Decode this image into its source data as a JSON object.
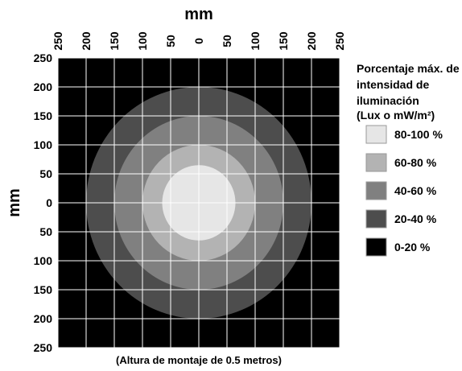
{
  "chart_data": {
    "type": "heatmap",
    "title": "",
    "x_axis": {
      "label": "mm",
      "ticks": [
        "250",
        "200",
        "150",
        "100",
        "50",
        "0",
        "50",
        "100",
        "150",
        "200",
        "250"
      ],
      "range": [
        -250,
        250
      ]
    },
    "y_axis": {
      "label": "mm",
      "ticks": [
        "250",
        "200",
        "150",
        "100",
        "50",
        "0",
        "50",
        "100",
        "150",
        "200",
        "250"
      ],
      "range": [
        -250,
        250
      ]
    },
    "grid": true,
    "rings": [
      {
        "label": "20-40 %",
        "radius_mm": 200,
        "color": "#4d4d4d"
      },
      {
        "label": "40-60 %",
        "radius_mm": 150,
        "color": "#808080"
      },
      {
        "label": "60-80 %",
        "radius_mm": 100,
        "color": "#b3b3b3"
      },
      {
        "label": "80-100 %",
        "radius_mm": 65,
        "color": "#e6e6e6"
      }
    ],
    "background": {
      "label": "0-20 %",
      "color": "#000000"
    },
    "legend": {
      "title_lines": [
        "Porcentaje máx. de",
        "intensidad de",
        "iluminación",
        "(Lux o mW/m²)"
      ],
      "placement": "right",
      "entries": [
        {
          "label": "80-100 %",
          "color": "#e6e6e6"
        },
        {
          "label": "60-80 %",
          "color": "#b3b3b3"
        },
        {
          "label": "40-60 %",
          "color": "#808080"
        },
        {
          "label": "20-40 %",
          "color": "#4d4d4d"
        },
        {
          "label": "0-20 %",
          "color": "#000000"
        }
      ]
    },
    "caption": "(Altura de montaje de 0.5 metros)"
  }
}
